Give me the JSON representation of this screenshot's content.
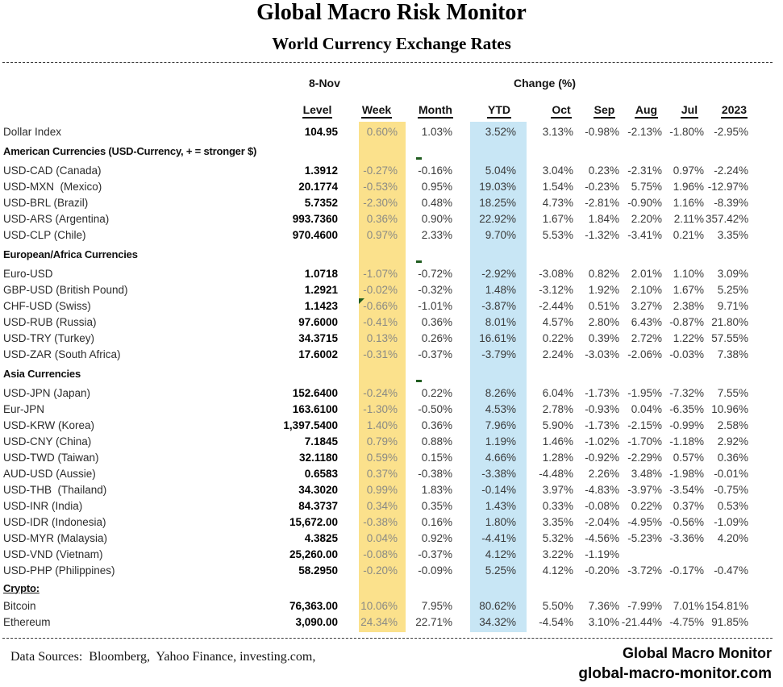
{
  "header": {
    "title": "Global Macro Risk Monitor",
    "subtitle": "World Currency Exchange Rates"
  },
  "table": {
    "date_label": "8-Nov",
    "change_label": "Change (%)",
    "columns": [
      "Level",
      "Week",
      "Month",
      "YTD",
      "Oct",
      "Sep",
      "Aug",
      "Jul",
      "2023"
    ],
    "sections": [
      {
        "name": "top",
        "header": null,
        "month_dash": false,
        "rows": [
          {
            "label": "Dollar Index",
            "level": "104.95",
            "week": "0.60%",
            "month": "1.03%",
            "ytd": "3.52%",
            "oct": "3.13%",
            "sep": "-0.98%",
            "aug": "-2.13%",
            "jul": "-1.80%",
            "y2023": "-2.95%"
          }
        ]
      },
      {
        "name": "american",
        "header": "American Currencies (USD-Currency, + = stronger $)",
        "month_dash": true,
        "rows": [
          {
            "label": "USD-CAD (Canada)",
            "level": "1.3912",
            "week": "-0.27%",
            "month": "-0.16%",
            "ytd": "5.04%",
            "oct": "3.04%",
            "sep": "0.23%",
            "aug": "-2.31%",
            "jul": "0.97%",
            "y2023": "-2.24%"
          },
          {
            "label": "USD-MXN  (Mexico)",
            "level": "20.1774",
            "week": "-0.53%",
            "month": "0.95%",
            "ytd": "19.03%",
            "oct": "1.54%",
            "sep": "-0.23%",
            "aug": "5.75%",
            "jul": "1.96%",
            "y2023": "-12.97%"
          },
          {
            "label": "USD-BRL (Brazil)",
            "level": "5.7352",
            "week": "-2.30%",
            "month": "0.48%",
            "ytd": "18.25%",
            "oct": "4.73%",
            "sep": "-2.81%",
            "aug": "-0.90%",
            "jul": "1.16%",
            "y2023": "-8.39%"
          },
          {
            "label": "USD-ARS (Argentina)",
            "level": "993.7360",
            "week": "0.36%",
            "month": "0.90%",
            "ytd": "22.92%",
            "oct": "1.67%",
            "sep": "1.84%",
            "aug": "2.20%",
            "jul": "2.11%",
            "y2023": "357.42%"
          },
          {
            "label": "USD-CLP (Chile)",
            "level": "970.4600",
            "week": "0.97%",
            "month": "2.33%",
            "ytd": "9.70%",
            "oct": "5.53%",
            "sep": "-1.32%",
            "aug": "-3.41%",
            "jul": "0.21%",
            "y2023": "3.35%"
          }
        ]
      },
      {
        "name": "european",
        "header": "European/Africa Currencies",
        "month_dash": true,
        "rows": [
          {
            "label": "Euro-USD",
            "level": "1.0718",
            "week": "-1.07%",
            "month": "-0.72%",
            "ytd": "-2.92%",
            "oct": "-3.08%",
            "sep": "0.82%",
            "aug": "2.01%",
            "jul": "1.10%",
            "y2023": "3.09%"
          },
          {
            "label": "GBP-USD (British Pound)",
            "level": "1.2921",
            "week": "-0.02%",
            "month": "-0.32%",
            "ytd": "1.48%",
            "oct": "-3.12%",
            "sep": "1.92%",
            "aug": "2.10%",
            "jul": "1.67%",
            "y2023": "5.25%"
          },
          {
            "label": "CHF-USD (Swiss)",
            "level": "1.1423",
            "week": "-0.66%",
            "month": "-1.01%",
            "ytd": "-3.87%",
            "oct": "-2.44%",
            "sep": "0.51%",
            "aug": "3.27%",
            "jul": "2.38%",
            "y2023": "9.71%",
            "comment_marker": true
          },
          {
            "label": "USD-RUB (Russia)",
            "level": "97.6000",
            "week": "-0.41%",
            "month": "0.36%",
            "ytd": "8.01%",
            "oct": "4.57%",
            "sep": "2.80%",
            "aug": "6.43%",
            "jul": "-0.87%",
            "y2023": "21.80%"
          },
          {
            "label": "USD-TRY (Turkey)",
            "level": "34.3715",
            "week": "0.13%",
            "month": "0.26%",
            "ytd": "16.61%",
            "oct": "0.22%",
            "sep": "0.39%",
            "aug": "2.72%",
            "jul": "1.22%",
            "y2023": "57.55%"
          },
          {
            "label": "USD-ZAR (South Africa)",
            "level": "17.6002",
            "week": "-0.31%",
            "month": "-0.37%",
            "ytd": "-3.79%",
            "oct": "2.24%",
            "sep": "-3.03%",
            "aug": "-2.06%",
            "jul": "-0.03%",
            "y2023": "7.38%"
          }
        ]
      },
      {
        "name": "asia",
        "header": "Asia Currencies",
        "month_dash": true,
        "rows": [
          {
            "label": "USD-JPN (Japan)",
            "level": "152.6400",
            "week": "-0.24%",
            "month": "0.22%",
            "ytd": "8.26%",
            "oct": "6.04%",
            "sep": "-1.73%",
            "aug": "-1.95%",
            "jul": "-7.32%",
            "y2023": "7.55%"
          },
          {
            "label": "Eur-JPN",
            "level": "163.6100",
            "week": "-1.30%",
            "month": "-0.50%",
            "ytd": "4.53%",
            "oct": "2.78%",
            "sep": "-0.93%",
            "aug": "0.04%",
            "jul": "-6.35%",
            "y2023": "10.96%"
          },
          {
            "label": "USD-KRW (Korea)",
            "level": "1,397.5400",
            "week": "1.40%",
            "month": "0.36%",
            "ytd": "7.96%",
            "oct": "5.90%",
            "sep": "-1.73%",
            "aug": "-2.15%",
            "jul": "-0.99%",
            "y2023": "2.58%"
          },
          {
            "label": "USD-CNY (China)",
            "level": "7.1845",
            "week": "0.79%",
            "month": "0.88%",
            "ytd": "1.19%",
            "oct": "1.46%",
            "sep": "-1.02%",
            "aug": "-1.70%",
            "jul": "-1.18%",
            "y2023": "2.92%"
          },
          {
            "label": "USD-TWD (Taiwan)",
            "level": "32.1180",
            "week": "0.59%",
            "month": "0.15%",
            "ytd": "4.66%",
            "oct": "1.28%",
            "sep": "-0.92%",
            "aug": "-2.29%",
            "jul": "0.57%",
            "y2023": "0.36%"
          },
          {
            "label": "AUD-USD (Aussie)",
            "level": "0.6583",
            "week": "0.37%",
            "month": "-0.38%",
            "ytd": "-3.38%",
            "oct": "-4.48%",
            "sep": "2.26%",
            "aug": "3.48%",
            "jul": "-1.98%",
            "y2023": "-0.01%"
          },
          {
            "label": "USD-THB  (Thailand)",
            "level": "34.3020",
            "week": "0.99%",
            "month": "1.83%",
            "ytd": "-0.14%",
            "oct": "3.97%",
            "sep": "-4.83%",
            "aug": "-3.97%",
            "jul": "-3.54%",
            "y2023": "-0.75%"
          },
          {
            "label": "USD-INR (India)",
            "level": "84.3737",
            "week": "0.34%",
            "month": "0.35%",
            "ytd": "1.43%",
            "oct": "0.33%",
            "sep": "-0.08%",
            "aug": "0.22%",
            "jul": "0.37%",
            "y2023": "0.53%"
          },
          {
            "label": "USD-IDR (Indonesia)",
            "level": "15,672.00",
            "week": "-0.38%",
            "month": "0.16%",
            "ytd": "1.80%",
            "oct": "3.35%",
            "sep": "-2.04%",
            "aug": "-4.95%",
            "jul": "-0.56%",
            "y2023": "-1.09%"
          },
          {
            "label": "USD-MYR (Malaysia)",
            "level": "4.3825",
            "week": "0.04%",
            "month": "0.92%",
            "ytd": "-4.41%",
            "oct": "5.32%",
            "sep": "-4.56%",
            "aug": "-5.23%",
            "jul": "-3.36%",
            "y2023": "4.20%"
          },
          {
            "label": "USD-VND (Vietnam)",
            "level": "25,260.00",
            "week": "-0.08%",
            "month": "-0.37%",
            "ytd": "4.12%",
            "oct": "3.22%",
            "sep": "-1.19%",
            "aug": "",
            "jul": "",
            "y2023": ""
          },
          {
            "label": "USD-PHP (Philippines)",
            "level": "58.2950",
            "week": "-0.20%",
            "month": "-0.09%",
            "ytd": "5.25%",
            "oct": "4.12%",
            "sep": "-0.20%",
            "aug": "-3.72%",
            "jul": "-0.17%",
            "y2023": "-0.47%"
          }
        ]
      },
      {
        "name": "crypto",
        "header": "Crypto:",
        "month_dash": false,
        "underline_header": true,
        "compact": true,
        "rows": [
          {
            "label": "Bitcoin",
            "level": "76,363.00",
            "week": "10.06%",
            "month": "7.95%",
            "ytd": "80.62%",
            "oct": "5.50%",
            "sep": "7.36%",
            "aug": "-7.99%",
            "jul": "7.01%",
            "y2023": "154.81%"
          },
          {
            "label": "Ethereum",
            "level": "3,090.00",
            "week": "24.34%",
            "month": "22.71%",
            "ytd": "34.32%",
            "oct": "-4.54%",
            "sep": "3.10%",
            "aug": "-21.44%",
            "jul": "-4.75%",
            "y2023": "91.85%"
          }
        ]
      }
    ]
  },
  "footer": {
    "sources": "Data Sources:  Bloomberg,  Yahoo Finance, investing.com,",
    "brand_name": "Global Macro Monitor",
    "brand_url": "global-macro-monitor.com"
  },
  "colors": {
    "week_band": "#FBE18C",
    "ytd_band": "#C8E6F5",
    "week_text": "#8A8A85",
    "value_text": "#3A3A3A",
    "comment_green": "#1F5C1F"
  }
}
